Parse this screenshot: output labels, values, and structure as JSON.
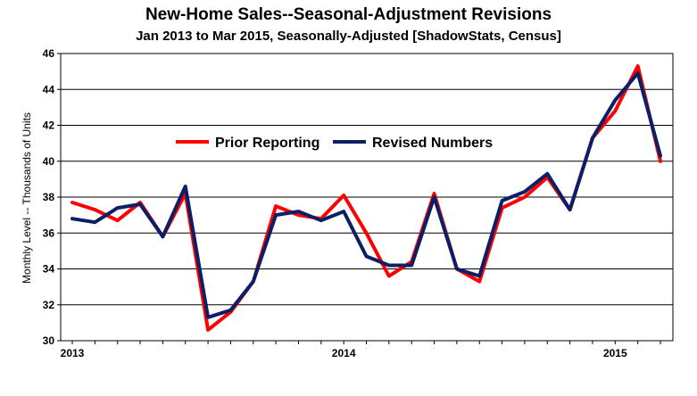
{
  "chart_data": {
    "type": "line",
    "title": "New-Home Sales--Seasonal-Adjustment Revisions",
    "subtitle": "Jan 2013 to Mar 2015, Seasonally-Adjusted [ShadowStats, Census]",
    "xlabel": "",
    "ylabel": "Monthly Level -- Thousands of Units",
    "ylim": [
      30,
      46
    ],
    "yticks": [
      30,
      32,
      34,
      36,
      38,
      40,
      42,
      44,
      46
    ],
    "xtick_labels": [
      {
        "index": 0,
        "label": "2013"
      },
      {
        "index": 12,
        "label": "2014"
      },
      {
        "index": 24,
        "label": "2015"
      }
    ],
    "grid": true,
    "legend_position": "center",
    "x": [
      "Jan 2013",
      "Feb 2013",
      "Mar 2013",
      "Apr 2013",
      "May 2013",
      "Jun 2013",
      "Jul 2013",
      "Aug 2013",
      "Sep 2013",
      "Oct 2013",
      "Nov 2013",
      "Dec 2013",
      "Jan 2014",
      "Feb 2014",
      "Mar 2014",
      "Apr 2014",
      "May 2014",
      "Jun 2014",
      "Jul 2014",
      "Aug 2014",
      "Sep 2014",
      "Oct 2014",
      "Nov 2014",
      "Dec 2014",
      "Jan 2015",
      "Feb 2015",
      "Mar 2015"
    ],
    "series": [
      {
        "name": "Prior Reporting",
        "color": "#ff0000",
        "values": [
          37.7,
          37.3,
          36.7,
          37.7,
          35.8,
          38.2,
          30.6,
          31.6,
          33.3,
          37.5,
          37.0,
          36.8,
          38.1,
          36.0,
          33.6,
          34.4,
          38.2,
          34.0,
          33.3,
          37.4,
          38.0,
          39.1,
          37.3,
          41.3,
          42.8,
          45.3,
          40.0
        ]
      },
      {
        "name": "Revised Numbers",
        "color": "#0b1f66",
        "values": [
          36.8,
          36.6,
          37.4,
          37.6,
          35.8,
          38.6,
          31.3,
          31.7,
          33.3,
          37.0,
          37.2,
          36.7,
          37.2,
          34.7,
          34.2,
          34.2,
          38.0,
          34.0,
          33.6,
          37.8,
          38.3,
          39.3,
          37.3,
          41.3,
          43.4,
          44.9,
          40.3
        ]
      }
    ]
  }
}
